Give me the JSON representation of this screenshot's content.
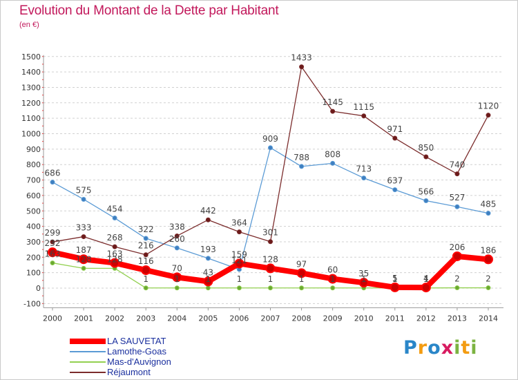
{
  "title": "Evolution du Montant de la Dette par Habitant",
  "unit": "(en €)",
  "brand": {
    "letters": [
      {
        "ch": "P",
        "color": "#2a86c8"
      },
      {
        "ch": "r",
        "color": "#f39c12"
      },
      {
        "ch": "o",
        "color": "#2a86c8"
      },
      {
        "ch": "x",
        "color": "#d81b60"
      },
      {
        "ch": "i",
        "color": "#7cb342"
      },
      {
        "ch": "t",
        "color": "#f39c12"
      },
      {
        "ch": "i",
        "color": "#7cb342"
      }
    ]
  },
  "chart_data": {
    "type": "line",
    "title": "Evolution du Montant de la Dette par Habitant",
    "ylabel": "(en €)",
    "xlabel": "",
    "x": [
      "2000",
      "2001",
      "2002",
      "2003",
      "2004",
      "2005",
      "2006",
      "2007",
      "2008",
      "2009",
      "2010",
      "2011",
      "2012",
      "2013",
      "2014"
    ],
    "ylim": [
      -100,
      1500
    ],
    "yticks": [
      -100,
      0,
      100,
      200,
      300,
      400,
      500,
      600,
      700,
      800,
      900,
      1000,
      1100,
      1200,
      1300,
      1400,
      1500
    ],
    "grid": "horizontal dashed",
    "legend": "bottom-left",
    "series": [
      {
        "name": "LA SAUVETAT",
        "color": "#ff0000",
        "values": [
          232,
          187,
          163,
          116,
          70,
          43,
          159,
          128,
          97,
          60,
          35,
          5,
          4,
          206,
          186
        ],
        "labels": [
          "",
          "187",
          "163",
          "116",
          "70",
          "43",
          "159",
          "128",
          "97",
          "60",
          "35",
          "5",
          "4",
          "206",
          "186"
        ]
      },
      {
        "name": "Lamothe-Goas",
        "color": "#5b9bd5",
        "values": [
          686,
          575,
          454,
          322,
          260,
          193,
          121,
          909,
          788,
          808,
          713,
          637,
          566,
          527,
          485
        ],
        "labels": [
          "686",
          "575",
          "454",
          "322",
          "260",
          "193",
          "121",
          "909",
          "788",
          "808",
          "713",
          "637",
          "566",
          "527",
          "485"
        ]
      },
      {
        "name": "Mas-d'Auvignon",
        "color": "#92d050",
        "values": [
          163,
          128,
          128,
          1,
          1,
          1,
          1,
          1,
          1,
          1,
          1,
          1,
          1,
          2,
          2
        ],
        "labels": [
          "163",
          "128",
          "128",
          "1",
          "1",
          "1",
          "1",
          "1",
          "1",
          "1",
          "1",
          "1",
          "1",
          "2",
          "2"
        ]
      },
      {
        "name": "Réjaumont",
        "color": "#7b2c2c",
        "values": [
          299,
          333,
          268,
          216,
          338,
          442,
          364,
          301,
          1433,
          1145,
          1115,
          971,
          850,
          740,
          1120
        ],
        "labels": [
          "299",
          "333",
          "268",
          "216",
          "338",
          "442",
          "364",
          "301",
          "1433",
          "1145",
          "1115",
          "971",
          "850",
          "740",
          "1120"
        ]
      }
    ],
    "extra_labels": [
      "232"
    ]
  }
}
